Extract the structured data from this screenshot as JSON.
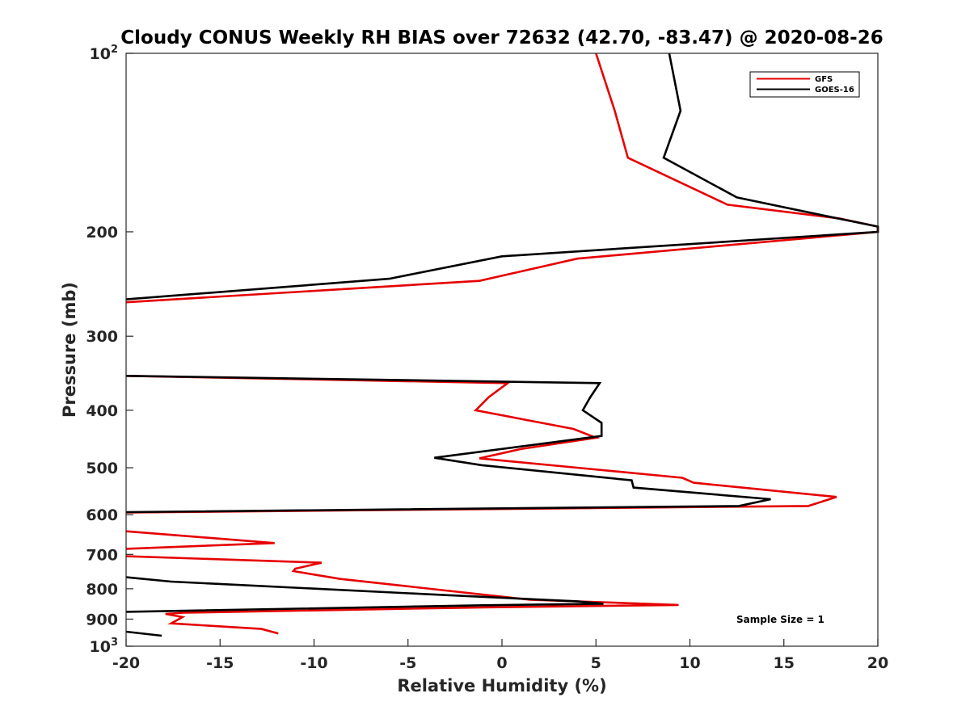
{
  "chart_data": {
    "type": "line",
    "title": "Cloudy CONUS Weekly RH BIAS over 72632 (42.70, -83.47) @ 2020-08-26",
    "xlabel": "Relative Humidity (%)",
    "ylabel": "Pressure (mb)",
    "xlim": [
      -20,
      20
    ],
    "ylim": [
      100,
      1000
    ],
    "y_scale": "log",
    "y_reversed": true,
    "grid": false,
    "legend_position": "top-right",
    "x_ticks": [
      "-20",
      "-15",
      "-10",
      "-5",
      "0",
      "5",
      "10",
      "15",
      "20"
    ],
    "y_ticks": [
      {
        "value": 100,
        "base": "10",
        "exp": "2"
      },
      {
        "value": 200,
        "label": "200"
      },
      {
        "value": 300,
        "label": "300"
      },
      {
        "value": 400,
        "label": "400"
      },
      {
        "value": 500,
        "label": "500"
      },
      {
        "value": 600,
        "label": "600"
      },
      {
        "value": 700,
        "label": "700"
      },
      {
        "value": 800,
        "label": "800"
      },
      {
        "value": 900,
        "label": "900"
      },
      {
        "value": 1000,
        "base": "10",
        "exp": "3"
      }
    ],
    "series": [
      {
        "name": "GFS",
        "color": "#e60000",
        "segments": [
          [
            [
              5,
              100
            ],
            [
              6,
              125
            ],
            [
              6.7,
              150
            ],
            [
              12,
              180
            ],
            [
              18,
              190
            ],
            [
              20,
              196
            ],
            [
              20,
              200
            ],
            [
              4,
              222
            ],
            [
              -1.2,
              242
            ],
            [
              -20,
              263
            ]
          ],
          [
            [
              -20,
              350
            ],
            [
              0.3,
              360
            ],
            [
              -0.7,
              380
            ],
            [
              -1.4,
              400
            ],
            [
              3.8,
              430
            ],
            [
              5,
              445
            ],
            [
              1,
              465
            ],
            [
              -1.2,
              482
            ],
            [
              4,
              500
            ],
            [
              9.6,
              520
            ],
            [
              10.2,
              530
            ],
            [
              17.8,
              560
            ],
            [
              16.3,
              580
            ],
            [
              -20,
              595
            ]
          ],
          [
            [
              -20,
              640
            ],
            [
              -12.1,
              670
            ],
            [
              -20,
              685
            ]
          ],
          [
            [
              -20,
              705
            ],
            [
              -9.6,
              723
            ],
            [
              -11,
              740
            ],
            [
              -11.1,
              747
            ],
            [
              -8.6,
              770
            ],
            [
              1.5,
              835
            ],
            [
              9.4,
              852
            ],
            [
              -1,
              860
            ],
            [
              -16.9,
              878
            ],
            [
              -17.9,
              882
            ],
            [
              -17,
              893
            ],
            [
              -17.6,
              915
            ],
            [
              -12.8,
              935
            ],
            [
              -11.9,
              952
            ]
          ]
        ]
      },
      {
        "name": "GOES-16",
        "color": "#000000",
        "segments": [
          [
            [
              8.9,
              100
            ],
            [
              9.5,
              125
            ],
            [
              8.6,
              150
            ],
            [
              12.5,
              175
            ],
            [
              17.2,
              188
            ],
            [
              20,
              196
            ],
            [
              20,
              200
            ],
            [
              0,
              220
            ],
            [
              -6,
              240
            ],
            [
              -20,
              260
            ]
          ],
          [
            [
              -20,
              350
            ],
            [
              5.2,
              360
            ],
            [
              4.7,
              380
            ],
            [
              4.3,
              400
            ],
            [
              5.3,
              420
            ],
            [
              5.3,
              442
            ],
            [
              -3.6,
              481
            ],
            [
              -1.1,
              495
            ],
            [
              6.9,
              525
            ],
            [
              7,
              540
            ],
            [
              14.3,
              565
            ],
            [
              12.6,
              580
            ],
            [
              -20,
              594
            ]
          ],
          [
            [
              -20,
              765
            ],
            [
              -17.6,
              778
            ],
            [
              -3,
              820
            ],
            [
              4,
              840
            ],
            [
              5.4,
              848
            ],
            [
              -1,
              853
            ],
            [
              -20,
              875
            ]
          ],
          [
            [
              -20,
              945
            ],
            [
              -18.1,
              960
            ]
          ]
        ]
      }
    ],
    "annotations": [
      "Sample Size = 1"
    ]
  }
}
